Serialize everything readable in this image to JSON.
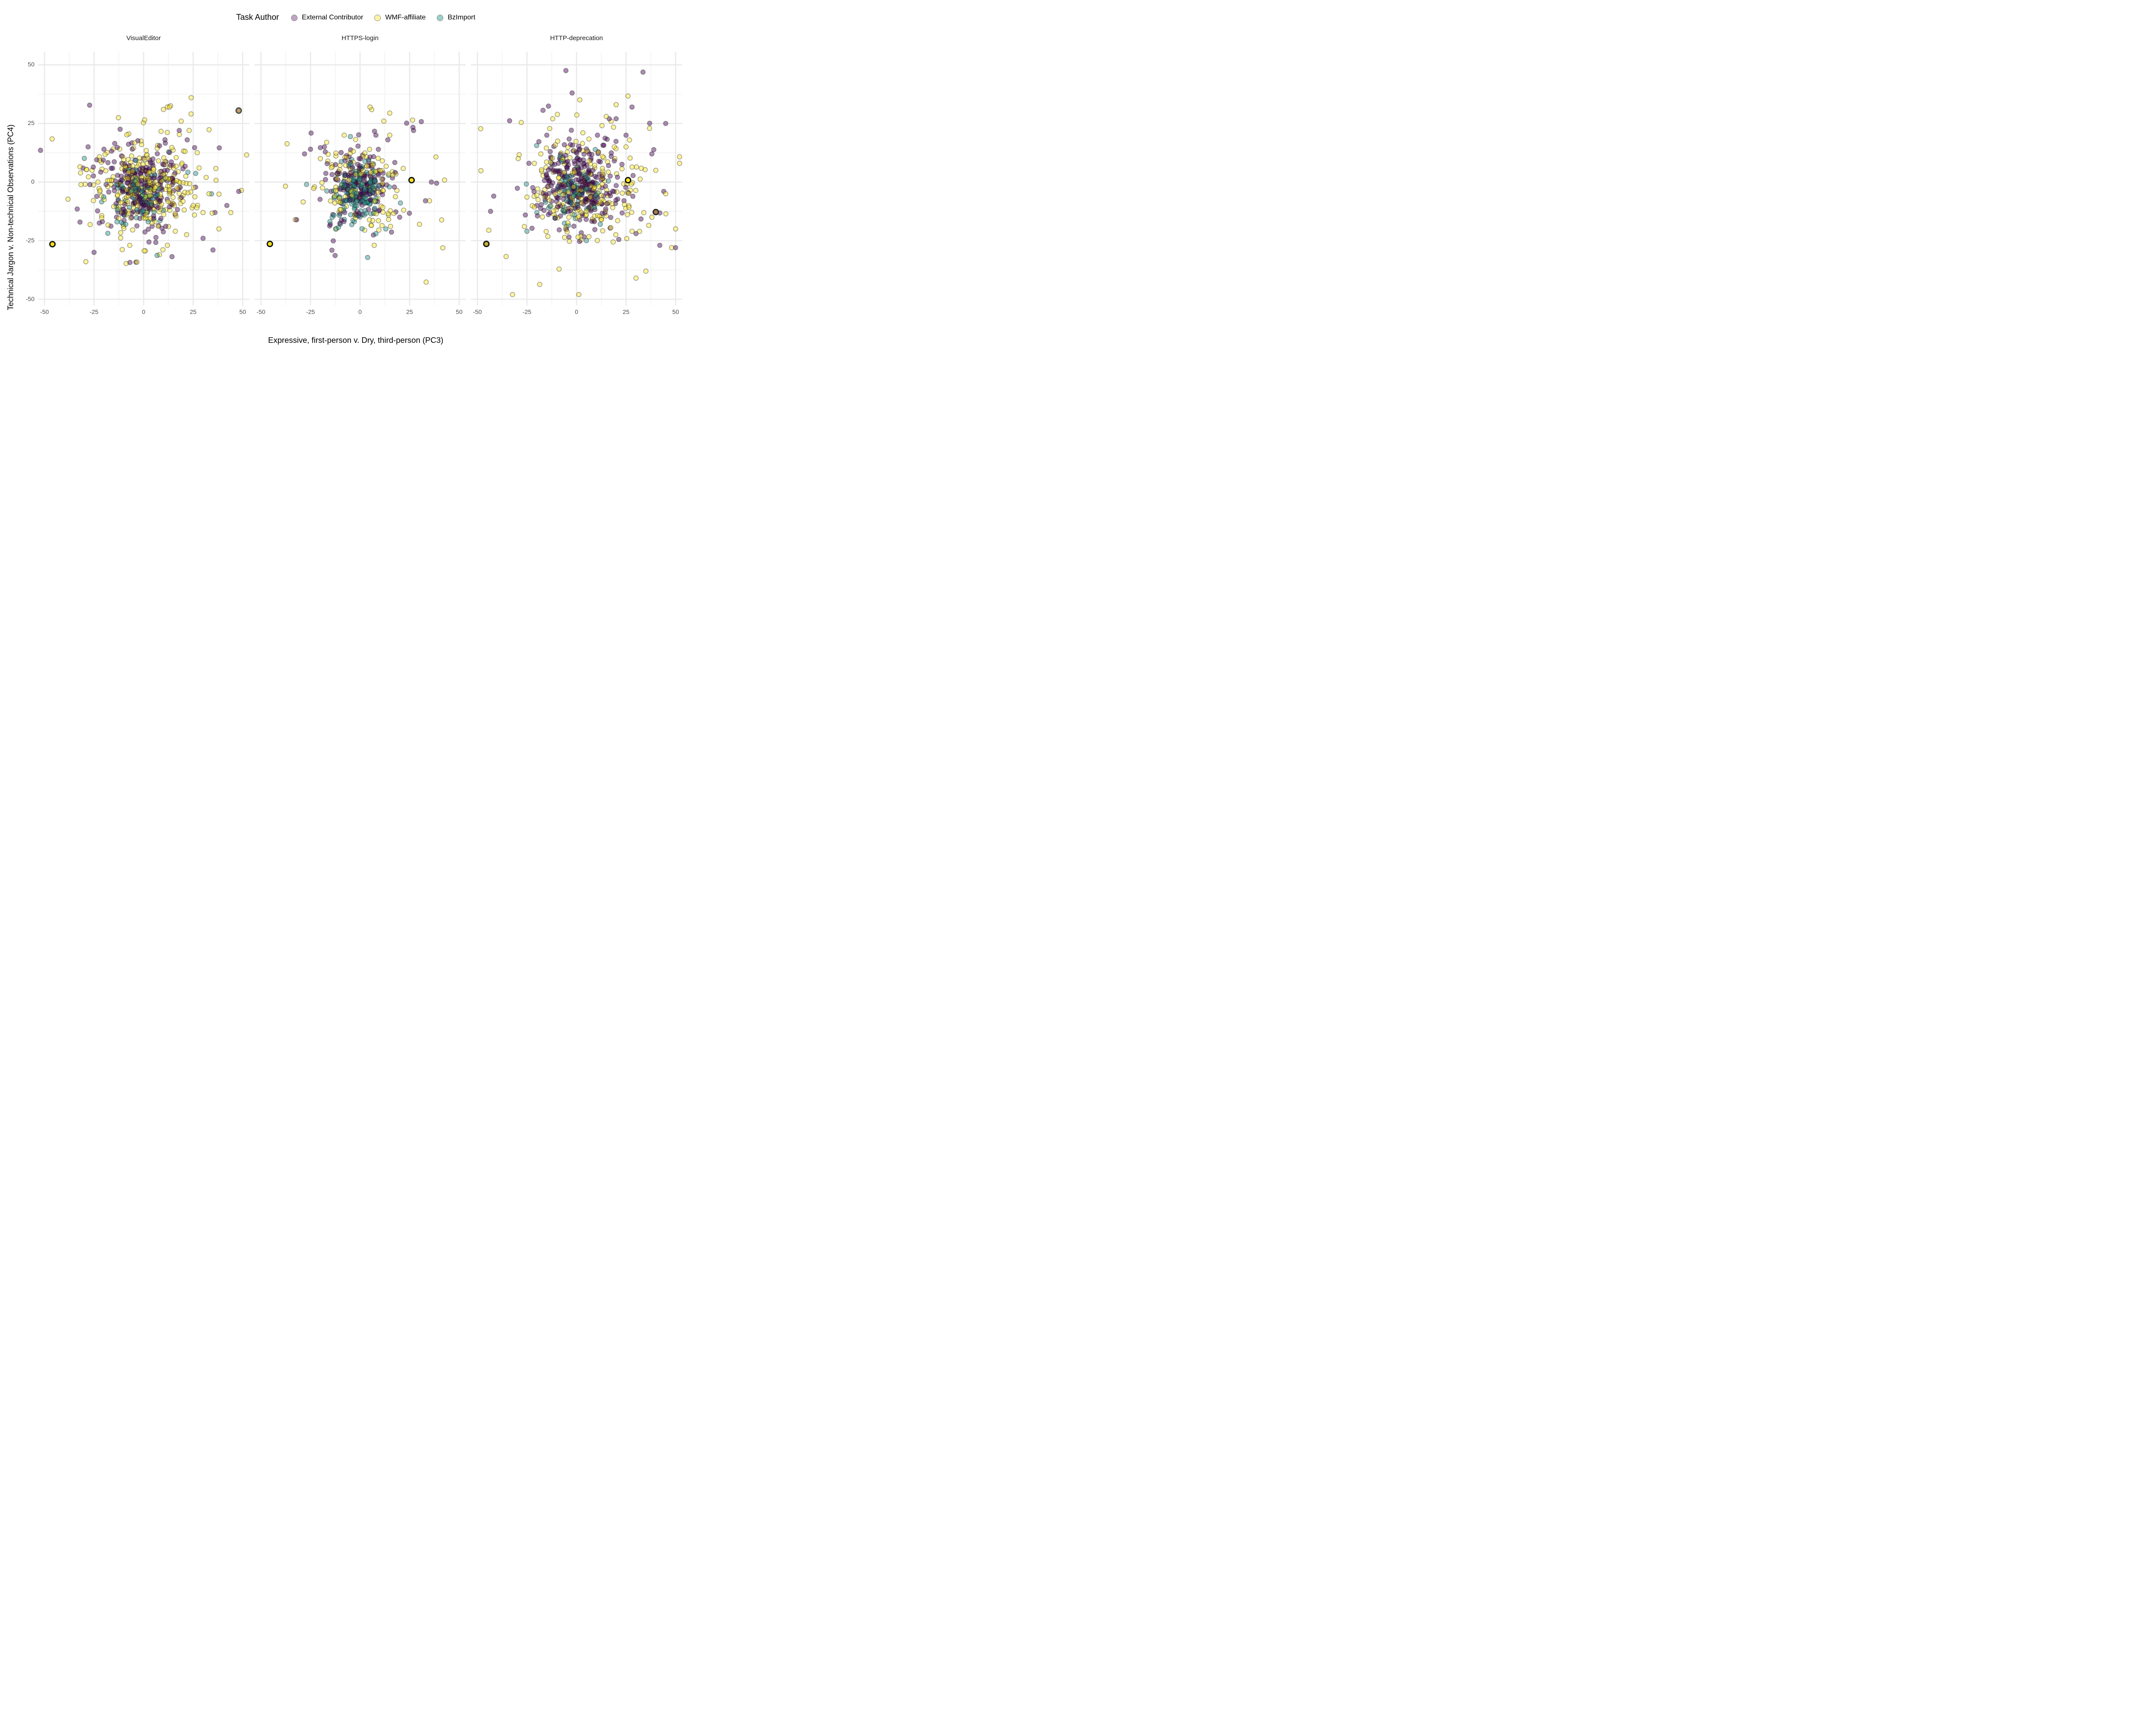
{
  "legend": {
    "title": "Task Author",
    "items": [
      {
        "label": "External Contributor",
        "key_fill": "#BFA4C6",
        "base_color": "#440154"
      },
      {
        "label": "WMF-affiliate",
        "key_fill": "#FDF3A2",
        "base_color": "#FDE725"
      },
      {
        "label": "BzImport",
        "key_fill": "#9CCEC9",
        "base_color": "#21908C"
      }
    ]
  },
  "axes": {
    "x_title": "Expressive, first-person v. Dry, third-person (PC3)",
    "y_title": "Technical Jargon v. Non-technical Observations (PC4)",
    "x_ticks": [
      -50,
      -25,
      0,
      25,
      50
    ],
    "y_ticks": [
      50,
      25,
      0,
      -25,
      -50
    ],
    "x_range": [
      -53.3,
      53.3
    ],
    "y_range": [
      -52.6,
      55.6
    ],
    "minor_ticks_x": [
      -37.5,
      -12.5,
      12.5,
      37.5
    ],
    "minor_ticks_y": [
      -37.5,
      -12.5,
      12.5,
      37.5
    ],
    "grid_major_color": "#e9e9e9",
    "grid_minor_color": "#f2f2f2",
    "tick_label_color": "#4d4d4d"
  },
  "chart_data": {
    "type": "scatter",
    "seed": 20,
    "legend_title": "Task Author",
    "series_names": [
      "External Contributor",
      "WMF-affiliate",
      "BzImport"
    ],
    "facets": [
      {
        "title": "VisualEditor",
        "series": [
          {
            "name": "External Contributor",
            "color": "#440154",
            "n": 250,
            "cluster": {
              "center": [
                -1,
                -2
              ],
              "sd": [
                9,
                8
              ]
            },
            "outliers": [
              [
                -28,
                15
              ],
              [
                -25,
                -30
              ],
              [
                35,
                -29
              ],
              [
                48,
                -4
              ],
              [
                42,
                -10
              ],
              [
                36,
                -13
              ],
              [
                22,
                18
              ],
              [
                18,
                22
              ],
              [
                -20,
                14
              ],
              [
                30,
                -24
              ]
            ]
          },
          {
            "name": "WMF-affiliate",
            "color": "#FDE725",
            "n": 300,
            "cluster": {
              "center": [
                2,
                -2
              ],
              "sd": [
                12.5,
                9.5
              ]
            },
            "outliers": [
              [
                24,
                36
              ],
              [
                13,
                32
              ],
              [
                19,
                26
              ],
              [
                10,
                31
              ],
              [
                30,
                -13
              ],
              [
                44,
                -13
              ],
              [
                38,
                -20
              ],
              [
                8,
                -31
              ],
              [
                -23,
                0
              ],
              [
                -26,
                5
              ],
              [
                28,
                6
              ],
              [
                33,
                -5
              ],
              [
                25,
                -10
              ],
              [
                12,
                -27
              ],
              [
                23,
                22
              ]
            ]
          },
          {
            "name": "BzImport",
            "color": "#21908C",
            "n": 100,
            "cluster": {
              "center": [
                -2,
                -6
              ],
              "sd": [
                6.5,
                5.5
              ]
            },
            "outliers": [
              [
                -9,
                -18
              ],
              [
                5,
                -16
              ],
              [
                10,
                -12
              ]
            ]
          }
        ],
        "highlighted_points": [
          {
            "x": -46,
            "y": -26.5,
            "fill": "#F2DE1F",
            "ring": "#0d0d0d"
          },
          {
            "x": 48,
            "y": 30.5,
            "fill": "#BE9B72",
            "ring": "#4a4a42"
          }
        ]
      },
      {
        "title": "HTTPS-login",
        "series": [
          {
            "name": "External Contributor",
            "color": "#440154",
            "n": 170,
            "cluster": {
              "center": [
                0,
                -1
              ],
              "sd": [
                8.5,
                8
              ]
            },
            "outliers": [
              [
                27,
                22
              ],
              [
                -25,
                14
              ],
              [
                -28,
                12
              ],
              [
                36,
                0
              ],
              [
                20,
                -15
              ],
              [
                -15,
                -18
              ],
              [
                14,
                18
              ],
              [
                -18,
                15
              ],
              [
                8,
                20
              ],
              [
                33,
                -8
              ]
            ]
          },
          {
            "name": "WMF-affiliate",
            "color": "#FDE725",
            "n": 140,
            "cluster": {
              "center": [
                1,
                -2
              ],
              "sd": [
                9,
                8.5
              ]
            },
            "outliers": [
              [
                5,
                32
              ],
              [
                12,
                26
              ],
              [
                -8,
                20
              ],
              [
                35,
                -8
              ],
              [
                30,
                -18
              ],
              [
                22,
                -12
              ],
              [
                -20,
                10
              ],
              [
                15,
                20
              ],
              [
                -12,
                -20
              ]
            ]
          },
          {
            "name": "BzImport",
            "color": "#21908C",
            "n": 160,
            "cluster": {
              "center": [
                -1,
                -4
              ],
              "sd": [
                6,
                6
              ]
            },
            "outliers": [
              [
                -27,
                -1
              ],
              [
                13,
                -20
              ],
              [
                8,
                -22
              ],
              [
                -14,
                -15
              ],
              [
                -10,
                -18
              ]
            ]
          }
        ],
        "highlighted_points": [
          {
            "x": -45.5,
            "y": -26.4,
            "fill": "#F2DE1F",
            "ring": "#0d0d0d"
          },
          {
            "x": 26,
            "y": 0.8,
            "fill": "#F7E11E",
            "ring": "#0d0d0d"
          }
        ]
      },
      {
        "title": "HTTP-deprecation",
        "series": [
          {
            "name": "External Contributor",
            "color": "#440154",
            "n": 300,
            "cluster": {
              "center": [
                1.5,
                -1
              ],
              "sd": [
                10,
                8.5
              ]
            },
            "outliers": [
              [
                28,
                32
              ],
              [
                45,
                25
              ],
              [
                42,
                -27
              ],
              [
                50,
                -28
              ],
              [
                -20,
                -10
              ],
              [
                -24,
                8
              ],
              [
                25,
                20
              ],
              [
                38,
                12
              ],
              [
                44,
                -4
              ],
              [
                30,
                -22
              ],
              [
                -15,
                20
              ],
              [
                20,
                27
              ]
            ]
          },
          {
            "name": "WMF-affiliate",
            "color": "#FDE725",
            "n": 230,
            "cluster": {
              "center": [
                4,
                -3.5
              ],
              "sd": [
                13.5,
                10.5
              ]
            },
            "outliers": [
              [
                20,
                33
              ],
              [
                28,
                -21
              ],
              [
                35,
                -38
              ],
              [
                30,
                -41
              ],
              [
                52,
                8
              ],
              [
                48,
                -28
              ],
              [
                -12,
                27
              ],
              [
                40,
                5
              ],
              [
                45,
                -5
              ],
              [
                38,
                -15
              ],
              [
                50,
                -20
              ],
              [
                -18,
                12
              ],
              [
                25,
                15
              ],
              [
                15,
                28
              ]
            ]
          },
          {
            "name": "BzImport",
            "color": "#21908C",
            "n": 80,
            "cluster": {
              "center": [
                0,
                -5
              ],
              "sd": [
                7,
                6
              ]
            },
            "outliers": [
              [
                -25,
                -21
              ],
              [
                5,
                -25
              ],
              [
                -20,
                -13
              ],
              [
                12,
                -18
              ]
            ]
          }
        ],
        "highlighted_points": [
          {
            "x": -45.5,
            "y": -26.4,
            "fill": "#C6AF35",
            "ring": "#0d0d0d"
          },
          {
            "x": 26,
            "y": 0.8,
            "fill": "#F7E11E",
            "ring": "#0d0d0d"
          },
          {
            "x": 40,
            "y": -12.8,
            "fill": "#9E7B50",
            "ring": "#262620"
          }
        ]
      }
    ]
  }
}
